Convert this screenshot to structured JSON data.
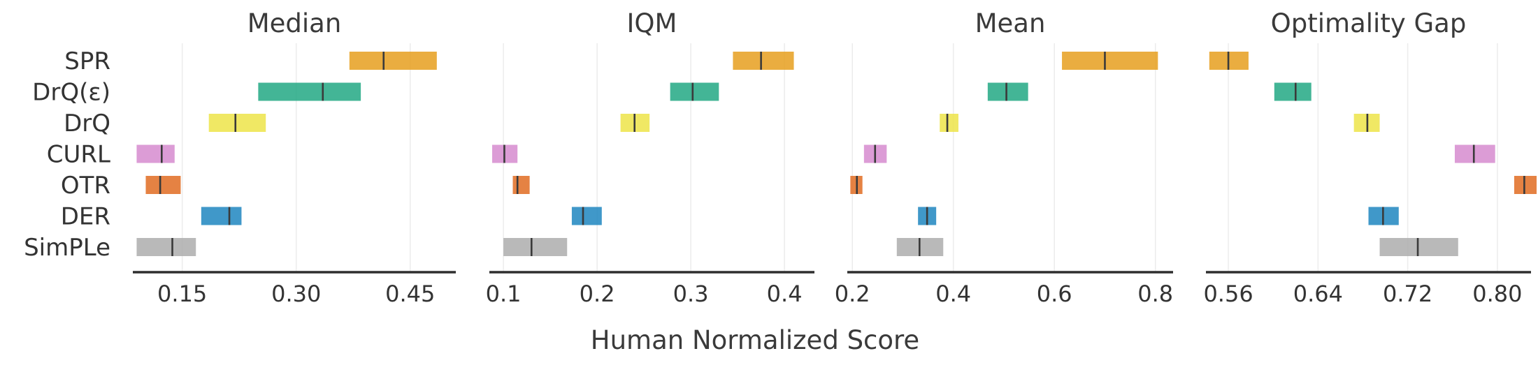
{
  "chart_data": {
    "type": "bar",
    "xlabel": "Human Normalized Score",
    "algorithms": [
      "SPR",
      "DrQ(ε)",
      "DrQ",
      "CURL",
      "OTR",
      "DER",
      "SimPLe"
    ],
    "colors": {
      "SPR": "#e69f1f",
      "DrQ(ε)": "#22a884",
      "DrQ": "#ede449",
      "CURL": "#d68bcf",
      "OTR": "#e06c22",
      "DER": "#1f86c0",
      "SimPLe": "#adadad"
    },
    "median_line_color": "#3a3a3a",
    "grid": true,
    "panels": [
      {
        "title": "Median",
        "xlim": [
          0.085,
          0.51
        ],
        "ticks": [
          0.15,
          0.3,
          0.45
        ],
        "tick_labels": [
          "0.15",
          "0.30",
          "0.45"
        ],
        "intervals": [
          {
            "name": "SPR",
            "low": 0.37,
            "point": 0.415,
            "high": 0.485
          },
          {
            "name": "DrQ(ε)",
            "low": 0.25,
            "point": 0.335,
            "high": 0.385
          },
          {
            "name": "DrQ",
            "low": 0.185,
            "point": 0.22,
            "high": 0.26
          },
          {
            "name": "CURL",
            "low": 0.09,
            "point": 0.123,
            "high": 0.14
          },
          {
            "name": "OTR",
            "low": 0.102,
            "point": 0.121,
            "high": 0.148
          },
          {
            "name": "DER",
            "low": 0.175,
            "point": 0.212,
            "high": 0.228
          },
          {
            "name": "SimPLe",
            "low": 0.09,
            "point": 0.137,
            "high": 0.168
          }
        ]
      },
      {
        "title": "IQM",
        "xlim": [
          0.085,
          0.432
        ],
        "ticks": [
          0.1,
          0.2,
          0.3,
          0.4
        ],
        "tick_labels": [
          "0.1",
          "0.2",
          "0.3",
          "0.4"
        ],
        "intervals": [
          {
            "name": "SPR",
            "low": 0.345,
            "point": 0.375,
            "high": 0.41
          },
          {
            "name": "DrQ(ε)",
            "low": 0.278,
            "point": 0.302,
            "high": 0.33
          },
          {
            "name": "DrQ",
            "low": 0.225,
            "point": 0.24,
            "high": 0.256
          },
          {
            "name": "CURL",
            "low": 0.088,
            "point": 0.101,
            "high": 0.115
          },
          {
            "name": "OTR",
            "low": 0.11,
            "point": 0.115,
            "high": 0.128
          },
          {
            "name": "DER",
            "low": 0.173,
            "point": 0.185,
            "high": 0.205
          },
          {
            "name": "SimPLe",
            "low": 0.1,
            "point": 0.13,
            "high": 0.168
          }
        ]
      },
      {
        "title": "Mean",
        "xlim": [
          0.19,
          0.835
        ],
        "ticks": [
          0.2,
          0.4,
          0.6,
          0.8
        ],
        "tick_labels": [
          "0.2",
          "0.4",
          "0.6",
          "0.8"
        ],
        "intervals": [
          {
            "name": "SPR",
            "low": 0.615,
            "point": 0.7,
            "high": 0.805
          },
          {
            "name": "DrQ(ε)",
            "low": 0.468,
            "point": 0.505,
            "high": 0.548
          },
          {
            "name": "DrQ",
            "low": 0.373,
            "point": 0.388,
            "high": 0.41
          },
          {
            "name": "CURL",
            "low": 0.223,
            "point": 0.245,
            "high": 0.268
          },
          {
            "name": "OTR",
            "low": 0.196,
            "point": 0.209,
            "high": 0.22
          },
          {
            "name": "DER",
            "low": 0.33,
            "point": 0.348,
            "high": 0.366
          },
          {
            "name": "SimPLe",
            "low": 0.288,
            "point": 0.333,
            "high": 0.38
          }
        ]
      },
      {
        "title": "Optimality Gap",
        "xlim": [
          0.54,
          0.83
        ],
        "ticks": [
          0.56,
          0.64,
          0.72,
          0.8
        ],
        "tick_labels": [
          "0.56",
          "0.64",
          "0.72",
          "0.80"
        ],
        "intervals": [
          {
            "name": "SPR",
            "low": 0.543,
            "point": 0.56,
            "high": 0.578
          },
          {
            "name": "DrQ(ε)",
            "low": 0.601,
            "point": 0.62,
            "high": 0.634
          },
          {
            "name": "DrQ",
            "low": 0.672,
            "point": 0.684,
            "high": 0.695
          },
          {
            "name": "CURL",
            "low": 0.762,
            "point": 0.779,
            "high": 0.798
          },
          {
            "name": "OTR",
            "low": 0.815,
            "point": 0.824,
            "high": 0.835
          },
          {
            "name": "DER",
            "low": 0.685,
            "point": 0.698,
            "high": 0.712
          },
          {
            "name": "SimPLe",
            "low": 0.695,
            "point": 0.729,
            "high": 0.765
          }
        ]
      }
    ]
  }
}
